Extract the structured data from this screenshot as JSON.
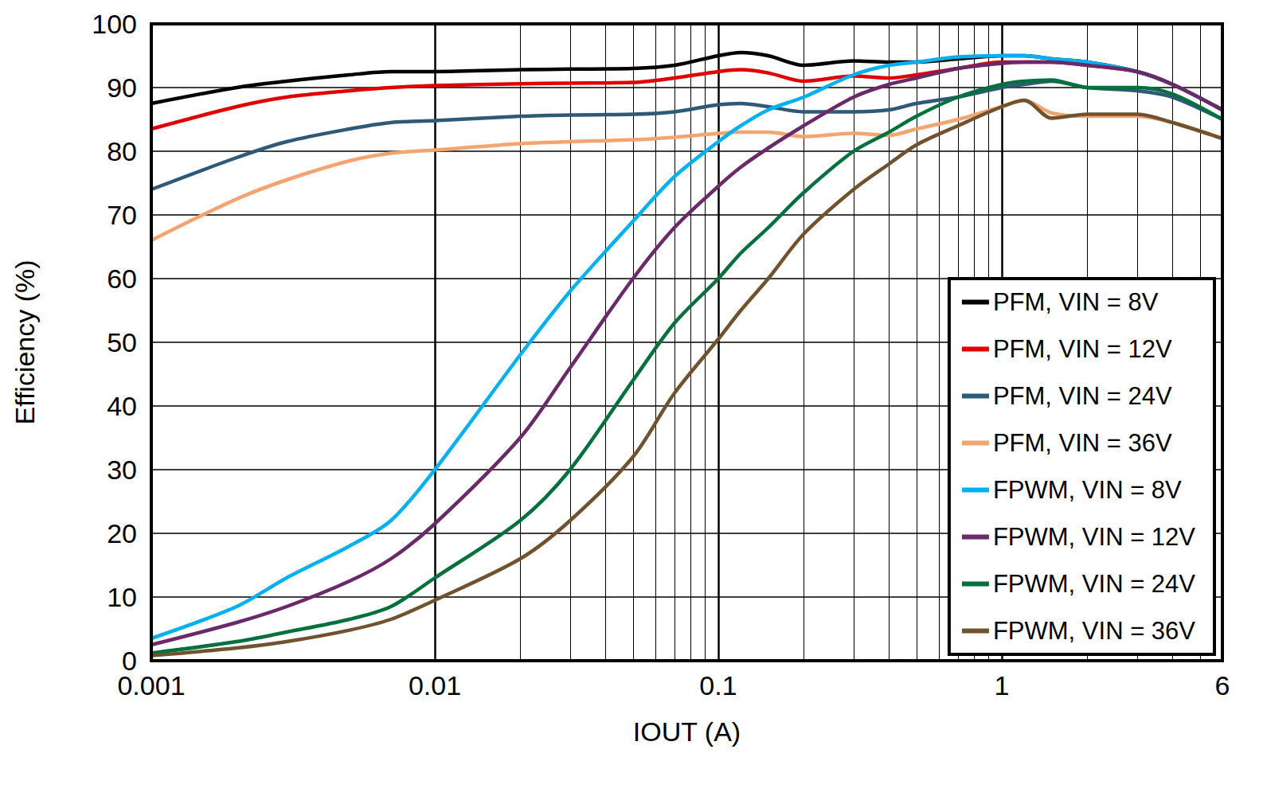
{
  "chart_data": {
    "type": "line",
    "xlabel": "IOUT (A)",
    "ylabel": "Efficiency (%)",
    "log": "x",
    "grid": true,
    "legend": "lower right",
    "xlim": [
      0.001,
      6
    ],
    "xticks": [
      0.001,
      0.01,
      0.1,
      1,
      6
    ],
    "ylim": [
      0,
      100
    ],
    "yticks": [
      0,
      10,
      20,
      30,
      40,
      50,
      60,
      70,
      80,
      90,
      100
    ],
    "x": [
      0.001,
      0.002,
      0.003,
      0.005,
      0.007,
      0.01,
      0.02,
      0.03,
      0.05,
      0.07,
      0.1,
      0.12,
      0.15,
      0.2,
      0.3,
      0.4,
      0.5,
      0.7,
      1,
      1.2,
      1.5,
      2,
      3,
      4,
      6
    ],
    "series": [
      {
        "name": "PFM, VIN = 8V",
        "color": "#000000",
        "values": [
          87.5,
          90,
          91,
          92,
          92.5,
          92.5,
          92.8,
          92.9,
          93,
          93.5,
          95,
          95.5,
          95,
          93.5,
          94.2,
          94,
          94,
          94.5,
          95,
          95,
          94.5,
          94,
          92.5,
          90.5,
          86.5
        ]
      },
      {
        "name": "PFM, VIN = 12V",
        "color": "#e00000",
        "values": [
          83.5,
          87,
          88.5,
          89.5,
          90,
          90.3,
          90.6,
          90.7,
          90.8,
          91.5,
          92.5,
          92.8,
          92.3,
          91,
          91.8,
          91.5,
          92,
          93,
          94,
          94,
          94,
          93.5,
          92.5,
          90.5,
          86.5
        ]
      },
      {
        "name": "PFM, VIN = 24V",
        "color": "#2e5a78",
        "values": [
          74,
          79,
          81.5,
          83.5,
          84.5,
          84.8,
          85.5,
          85.7,
          85.8,
          86.2,
          87.3,
          87.5,
          87,
          86.2,
          86.2,
          86.5,
          87.5,
          88.5,
          90,
          90.5,
          91,
          90,
          89.5,
          88.5,
          85
        ]
      },
      {
        "name": "PFM, VIN = 36V",
        "color": "#f4a46e",
        "values": [
          66,
          72.5,
          75.5,
          78.5,
          79.7,
          80.2,
          81.2,
          81.5,
          81.8,
          82.2,
          82.8,
          83,
          83,
          82.3,
          82.8,
          82.5,
          83.5,
          85,
          87,
          88,
          86,
          85.5,
          85.5,
          84.5,
          82
        ]
      },
      {
        "name": "FPWM, VIN = 8V",
        "color": "#00b0f0",
        "values": [
          3.5,
          8.5,
          13,
          18,
          22,
          30,
          48,
          58,
          69,
          76,
          81.5,
          84,
          86.5,
          88.5,
          92,
          93.5,
          94,
          94.8,
          95,
          95,
          94.5,
          94,
          92.5,
          90.5,
          86.5
        ]
      },
      {
        "name": "FPWM, VIN = 12V",
        "color": "#6a2a6a",
        "values": [
          2.5,
          6,
          8.5,
          12.5,
          16,
          21.5,
          35,
          46,
          60,
          68,
          74.5,
          77.5,
          80.5,
          84,
          88.5,
          90.5,
          91.5,
          93,
          93.8,
          94,
          94,
          93.5,
          92.5,
          90.5,
          86.5
        ]
      },
      {
        "name": "FPWM, VIN = 24V",
        "color": "#00703c",
        "values": [
          1.2,
          3,
          4.5,
          6.5,
          8.5,
          13,
          22,
          30,
          44,
          53,
          60,
          64,
          68,
          73.5,
          80,
          83,
          85.5,
          88.5,
          90.5,
          91,
          91.2,
          90,
          90,
          89,
          85
        ]
      },
      {
        "name": "FPWM, VIN = 36V",
        "color": "#70532e",
        "values": [
          0.8,
          2,
          3,
          4.8,
          6.5,
          9.5,
          16,
          22,
          32,
          42,
          50.5,
          55,
          60,
          67,
          74,
          78,
          81,
          84,
          87,
          88,
          85.2,
          85.8,
          85.8,
          84.5,
          82
        ]
      }
    ]
  }
}
